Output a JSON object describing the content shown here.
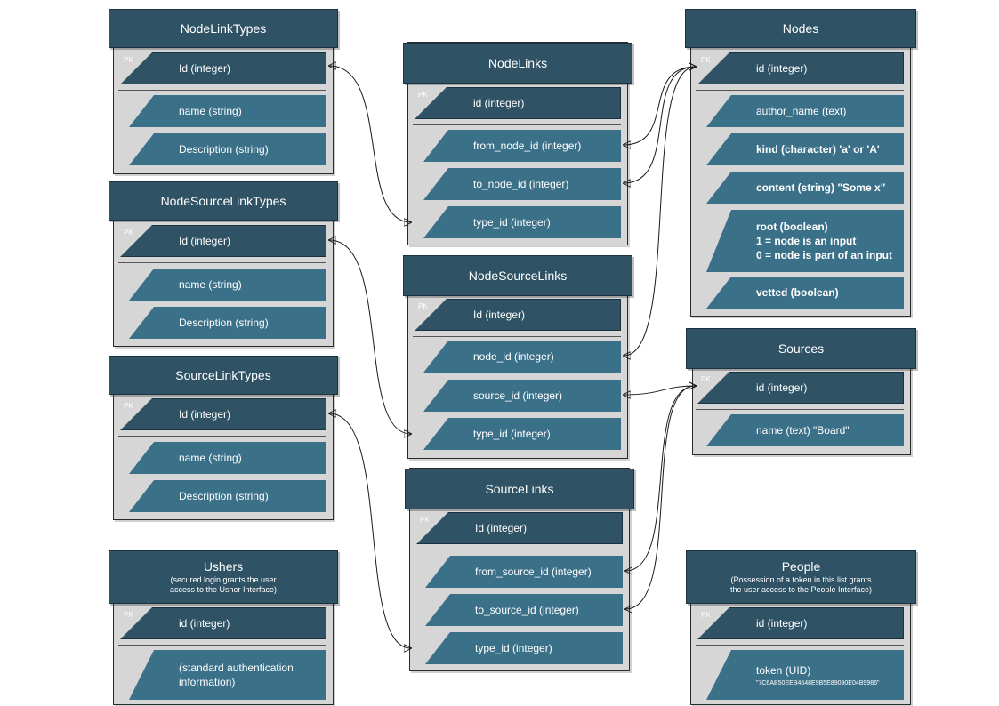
{
  "entities": {
    "node_link_types": {
      "title": "NodeLinkTypes",
      "pk_tag": "PK",
      "fields": [
        "Id (integer)",
        "name (string)",
        "Description (string)"
      ]
    },
    "node_source_link_types": {
      "title": "NodeSourceLinkTypes",
      "pk_tag": "PK",
      "fields": [
        "Id (integer)",
        "name (string)",
        "Description (string)"
      ]
    },
    "source_link_types": {
      "title": "SourceLinkTypes",
      "pk_tag": "PK",
      "fields": [
        "Id (integer)",
        "name (string)",
        "Description (string)"
      ]
    },
    "ushers": {
      "title": "Ushers",
      "subtitle": [
        "(secured login grants the user",
        "access to the Usher Interface)"
      ],
      "pk_tag": "PK",
      "fields": [
        "id (integer)",
        "(standard authentication",
        "information)"
      ]
    },
    "node_links": {
      "title": "NodeLinks",
      "pk_tag": "PK",
      "fields": [
        "id (integer)",
        "from_node_id (integer)",
        "to_node_id (integer)",
        "type_id (integer)"
      ]
    },
    "node_source_links": {
      "title": "NodeSourceLinks",
      "pk_tag": "PK",
      "fields": [
        "Id (integer)",
        "node_id (integer)",
        "source_id (integer)",
        "type_id (integer)"
      ]
    },
    "source_links": {
      "title": "SourceLinks",
      "pk_tag": "PK",
      "fields": [
        "Id (integer)",
        "from_source_id (integer)",
        "to_source_id (integer)",
        "type_id (integer)"
      ]
    },
    "nodes": {
      "title": "Nodes",
      "pk_tag": "PK",
      "fields": [
        "id (integer)",
        "author_name (text)",
        "kind (character) 'a' or 'A'",
        "content (string) \"Some x\"",
        "root (boolean)",
        "1 = node is an input",
        "0 = node is part of an input",
        "vetted (boolean)"
      ]
    },
    "sources": {
      "title": "Sources",
      "pk_tag": "PK",
      "fields": [
        "id (integer)",
        "name (text) \"Board\""
      ]
    },
    "people": {
      "title": "People",
      "subtitle": [
        "(Possession of a token in this list grants",
        "the user access to the People Interface)"
      ],
      "pk_tag": "PK",
      "fields": [
        "id (integer)",
        "token (UID)",
        "\"7C6AB50EEB4648E9B5E89090E04B9986\""
      ]
    }
  }
}
